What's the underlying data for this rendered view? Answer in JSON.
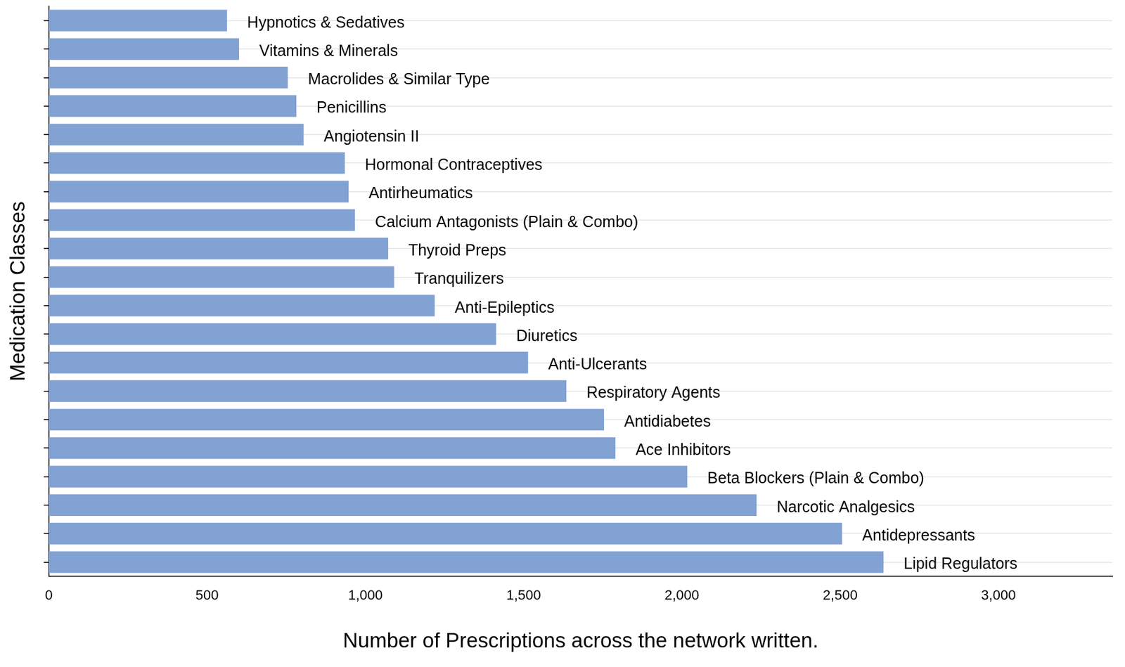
{
  "chart_data": {
    "type": "bar",
    "orientation": "horizontal",
    "xlabel": "Number of Prescriptions across the network written.",
    "ylabel": "Medication Classes",
    "categories": [
      "Hypnotics & Sedatives",
      "Vitamins & Minerals",
      "Macrolides & Similar Type",
      "Penicillins",
      "Angiotensin II",
      "Hormonal Contraceptives",
      "Antirheumatics",
      "Calcium Antagonists (Plain & Combo)",
      "Thyroid Preps",
      "Tranquilizers",
      "Anti-Epileptics",
      "Diuretics",
      "Anti-Ulcerants",
      "Respiratory Agents",
      "Antidiabetes",
      "Ace Inhibitors",
      "Beta Blockers (Plain & Combo)",
      "Narcotic Analgesics",
      "Antidepressants",
      "Lipid Regulators"
    ],
    "values": [
      563,
      601,
      755,
      782,
      805,
      935,
      947,
      967,
      1072,
      1091,
      1219,
      1413,
      1514,
      1635,
      1754,
      1790,
      2017,
      2236,
      2506,
      2637
    ],
    "color": "#82a2d3",
    "xlim": [
      0,
      3360
    ],
    "xticks": [
      0,
      500,
      1000,
      1500,
      2000,
      2500,
      3000
    ],
    "grid": true,
    "tick_labels": "x"
  }
}
